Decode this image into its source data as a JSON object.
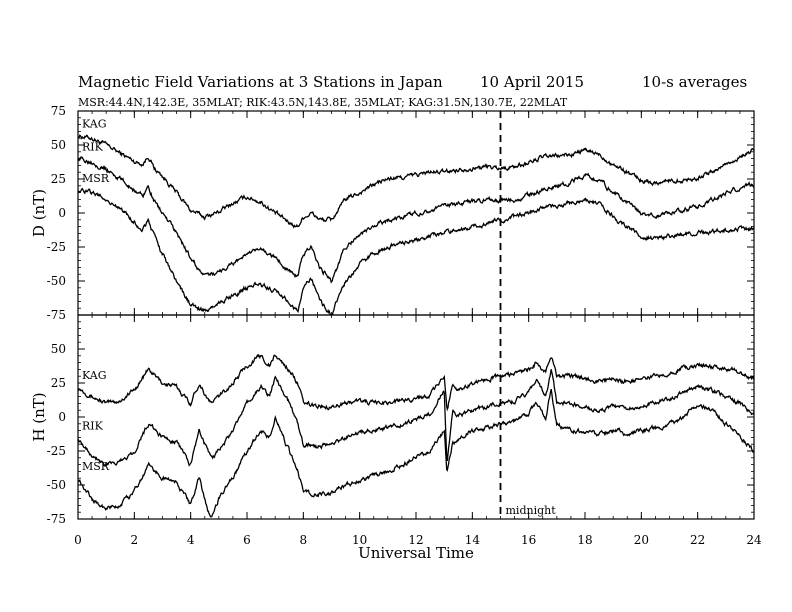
{
  "chart_data": {
    "type": "line",
    "title": "Magnetic Field Variations at 3 Stations in Japan",
    "date": "10  April    2015",
    "averaging": "10-s averages",
    "subtitle": "MSR:44.4N,142.3E, 35MLAT;  RIK:43.5N,143.8E, 35MLAT;  KAG:31.5N,130.7E, 22MLAT",
    "xlabel": "Universal Time",
    "xlim": [
      0,
      24
    ],
    "xticks": [
      "0",
      "2",
      "4",
      "6",
      "8",
      "10",
      "12",
      "14",
      "16",
      "18",
      "20",
      "22",
      "24"
    ],
    "annotation": {
      "label": "midnight",
      "x": 15
    },
    "panels": [
      {
        "ylabel": "D (nT)",
        "ylim": [
          -75,
          75
        ],
        "yticks": [
          "75",
          "50",
          "25",
          "0",
          "-25",
          "-50",
          "-75"
        ],
        "series": [
          {
            "name": "KAG",
            "x": [
              0,
              0.5,
              1,
              1.5,
              2,
              2.3,
              2.5,
              2.7,
              3,
              3.5,
              4,
              4.5,
              5,
              5.5,
              6,
              6.5,
              7,
              7.5,
              7.8,
              8,
              8.3,
              8.6,
              9,
              9.5,
              10,
              10.5,
              11,
              11.5,
              12,
              12.5,
              13,
              13.5,
              14,
              14.5,
              15,
              15.5,
              16,
              16.5,
              17,
              17.5,
              18,
              18.5,
              19,
              19.5,
              20,
              20.5,
              21,
              21.5,
              22,
              22.5,
              23,
              23.5,
              24
            ],
            "y": [
              57,
              55,
              50,
              44,
              38,
              36,
              42,
              33,
              27,
              15,
              2,
              -3,
              1,
              7,
              12,
              8,
              0,
              -7,
              -10,
              -3,
              0,
              -5,
              -5,
              10,
              15,
              21,
              25,
              26,
              28,
              30,
              30,
              32,
              33,
              34,
              33,
              34,
              37,
              41,
              42,
              43,
              46,
              43,
              36,
              30,
              24,
              22,
              24,
              24,
              26,
              30,
              36,
              41,
              46
            ]
          },
          {
            "name": "RIK",
            "x": [
              0,
              0.5,
              1,
              1.5,
              2,
              2.3,
              2.5,
              2.7,
              3,
              3.5,
              4,
              4.5,
              5,
              5.5,
              6,
              6.5,
              7,
              7.5,
              7.8,
              8,
              8.3,
              8.6,
              9,
              9.5,
              10,
              10.5,
              11,
              11.5,
              12,
              12.5,
              13,
              13.5,
              14,
              14.5,
              15,
              15.5,
              16,
              16.5,
              17,
              17.5,
              18,
              18.5,
              19,
              19.5,
              20,
              20.5,
              21,
              21.5,
              22,
              22.5,
              23,
              23.5,
              24
            ],
            "y": [
              40,
              38,
              32,
              25,
              17,
              13,
              20,
              9,
              0,
              -15,
              -33,
              -47,
              -43,
              -37,
              -30,
              -27,
              -33,
              -42,
              -47,
              -30,
              -25,
              -40,
              -50,
              -25,
              -16,
              -10,
              -5,
              -3,
              0,
              2,
              5,
              7,
              8,
              9,
              9,
              10,
              13,
              17,
              20,
              23,
              28,
              25,
              15,
              8,
              0,
              -2,
              0,
              2,
              5,
              10,
              15,
              18,
              21
            ]
          },
          {
            "name": "MSR",
            "x": [
              0,
              0.5,
              1,
              1.5,
              2,
              2.3,
              2.5,
              2.7,
              3,
              3.5,
              4,
              4.5,
              5,
              5.5,
              6,
              6.5,
              7,
              7.5,
              7.8,
              8,
              8.3,
              8.6,
              9,
              9.5,
              10,
              10.5,
              11,
              11.5,
              12,
              12.5,
              13,
              13.5,
              14,
              14.5,
              15,
              15.5,
              16,
              16.5,
              17,
              17.5,
              18,
              18.5,
              19,
              19.5,
              20,
              20.5,
              21,
              21.5,
              22,
              22.5,
              23,
              23.5,
              24
            ],
            "y": [
              17,
              15,
              10,
              3,
              -7,
              -12,
              -5,
              -17,
              -30,
              -50,
              -68,
              -72,
              -67,
              -60,
              -55,
              -52,
              -58,
              -65,
              -73,
              -55,
              -48,
              -65,
              -75,
              -50,
              -38,
              -30,
              -25,
              -22,
              -20,
              -17,
              -14,
              -11,
              -10,
              -8,
              -5,
              -3,
              0,
              3,
              5,
              7,
              10,
              7,
              -3,
              -10,
              -17,
              -19,
              -17,
              -16,
              -14,
              -14,
              -12,
              -12,
              -12
            ]
          }
        ]
      },
      {
        "ylabel": "H (nT)",
        "ylim": [
          -75,
          75
        ],
        "yticks": [
          "75",
          "50",
          "25",
          "0",
          "-25",
          "-50",
          "-75"
        ],
        "series": [
          {
            "name": "KAG",
            "x": [
              0,
              0.5,
              1,
              1.5,
              2,
              2.5,
              3,
              3.5,
              4,
              4.3,
              4.7,
              5,
              5.5,
              6,
              6.5,
              6.8,
              7,
              7.5,
              7.8,
              8,
              8.5,
              9,
              9.5,
              10,
              10.5,
              11,
              11.5,
              12,
              12.5,
              13,
              13.1,
              13.3,
              13.5,
              14,
              14.5,
              15,
              15.5,
              16,
              16.3,
              16.6,
              16.8,
              17,
              17.5,
              18,
              18.5,
              19,
              19.5,
              20,
              20.5,
              21,
              21.5,
              22,
              22.5,
              23,
              23.5,
              24
            ],
            "y": [
              22,
              15,
              10,
              12,
              20,
              35,
              25,
              22,
              10,
              25,
              10,
              15,
              25,
              38,
              45,
              38,
              45,
              35,
              25,
              10,
              8,
              8,
              10,
              12,
              10,
              11,
              12,
              14,
              16,
              30,
              5,
              25,
              20,
              25,
              28,
              30,
              32,
              35,
              40,
              32,
              45,
              30,
              30,
              29,
              26,
              28,
              26,
              28,
              30,
              33,
              36,
              38,
              37,
              35,
              33,
              27
            ]
          },
          {
            "name": "RIK",
            "x": [
              0,
              0.5,
              1,
              1.5,
              2,
              2.5,
              3,
              3.5,
              4,
              4.3,
              4.7,
              5,
              5.5,
              6,
              6.5,
              6.8,
              7,
              7.5,
              7.8,
              8,
              8.5,
              9,
              9.5,
              10,
              10.5,
              11,
              11.5,
              12,
              12.5,
              13,
              13.1,
              13.3,
              13.5,
              14,
              14.5,
              15,
              15.5,
              16,
              16.3,
              16.6,
              16.8,
              17,
              17.5,
              18,
              18.5,
              19,
              19.5,
              20,
              20.5,
              21,
              21.5,
              22,
              22.5,
              23,
              23.5,
              24
            ],
            "y": [
              -15,
              -28,
              -35,
              -33,
              -25,
              -5,
              -15,
              -18,
              -35,
              -10,
              -30,
              -25,
              -10,
              10,
              22,
              15,
              30,
              10,
              -5,
              -20,
              -22,
              -20,
              -15,
              -12,
              -10,
              -8,
              -5,
              -2,
              2,
              20,
              -35,
              5,
              0,
              5,
              8,
              10,
              12,
              18,
              28,
              15,
              35,
              10,
              10,
              8,
              5,
              8,
              6,
              8,
              10,
              14,
              18,
              22,
              20,
              15,
              10,
              2
            ]
          },
          {
            "name": "MSR",
            "x": [
              0,
              0.5,
              1,
              1.5,
              2,
              2.5,
              3,
              3.5,
              4,
              4.3,
              4.7,
              5,
              5.5,
              6,
              6.5,
              6.8,
              7,
              7.5,
              7.8,
              8,
              8.5,
              9,
              9.5,
              10,
              10.5,
              11,
              11.5,
              12,
              12.5,
              13,
              13.1,
              13.3,
              13.5,
              14,
              14.5,
              15,
              15.5,
              16,
              16.3,
              16.6,
              16.8,
              17,
              17.5,
              18,
              18.5,
              19,
              19.5,
              20,
              20.5,
              21,
              21.5,
              22,
              22.5,
              23,
              23.5,
              24
            ],
            "y": [
              -45,
              -60,
              -68,
              -65,
              -55,
              -35,
              -45,
              -48,
              -65,
              -45,
              -75,
              -60,
              -45,
              -25,
              -10,
              -15,
              0,
              -25,
              -40,
              -55,
              -57,
              -55,
              -50,
              -47,
              -43,
              -40,
              -35,
              -30,
              -25,
              -10,
              -40,
              -20,
              -15,
              -10,
              -8,
              -5,
              -3,
              2,
              10,
              0,
              20,
              -5,
              -10,
              -11,
              -13,
              -10,
              -12,
              -10,
              -8,
              -5,
              0,
              10,
              5,
              -5,
              -15,
              -25
            ]
          }
        ]
      }
    ]
  }
}
